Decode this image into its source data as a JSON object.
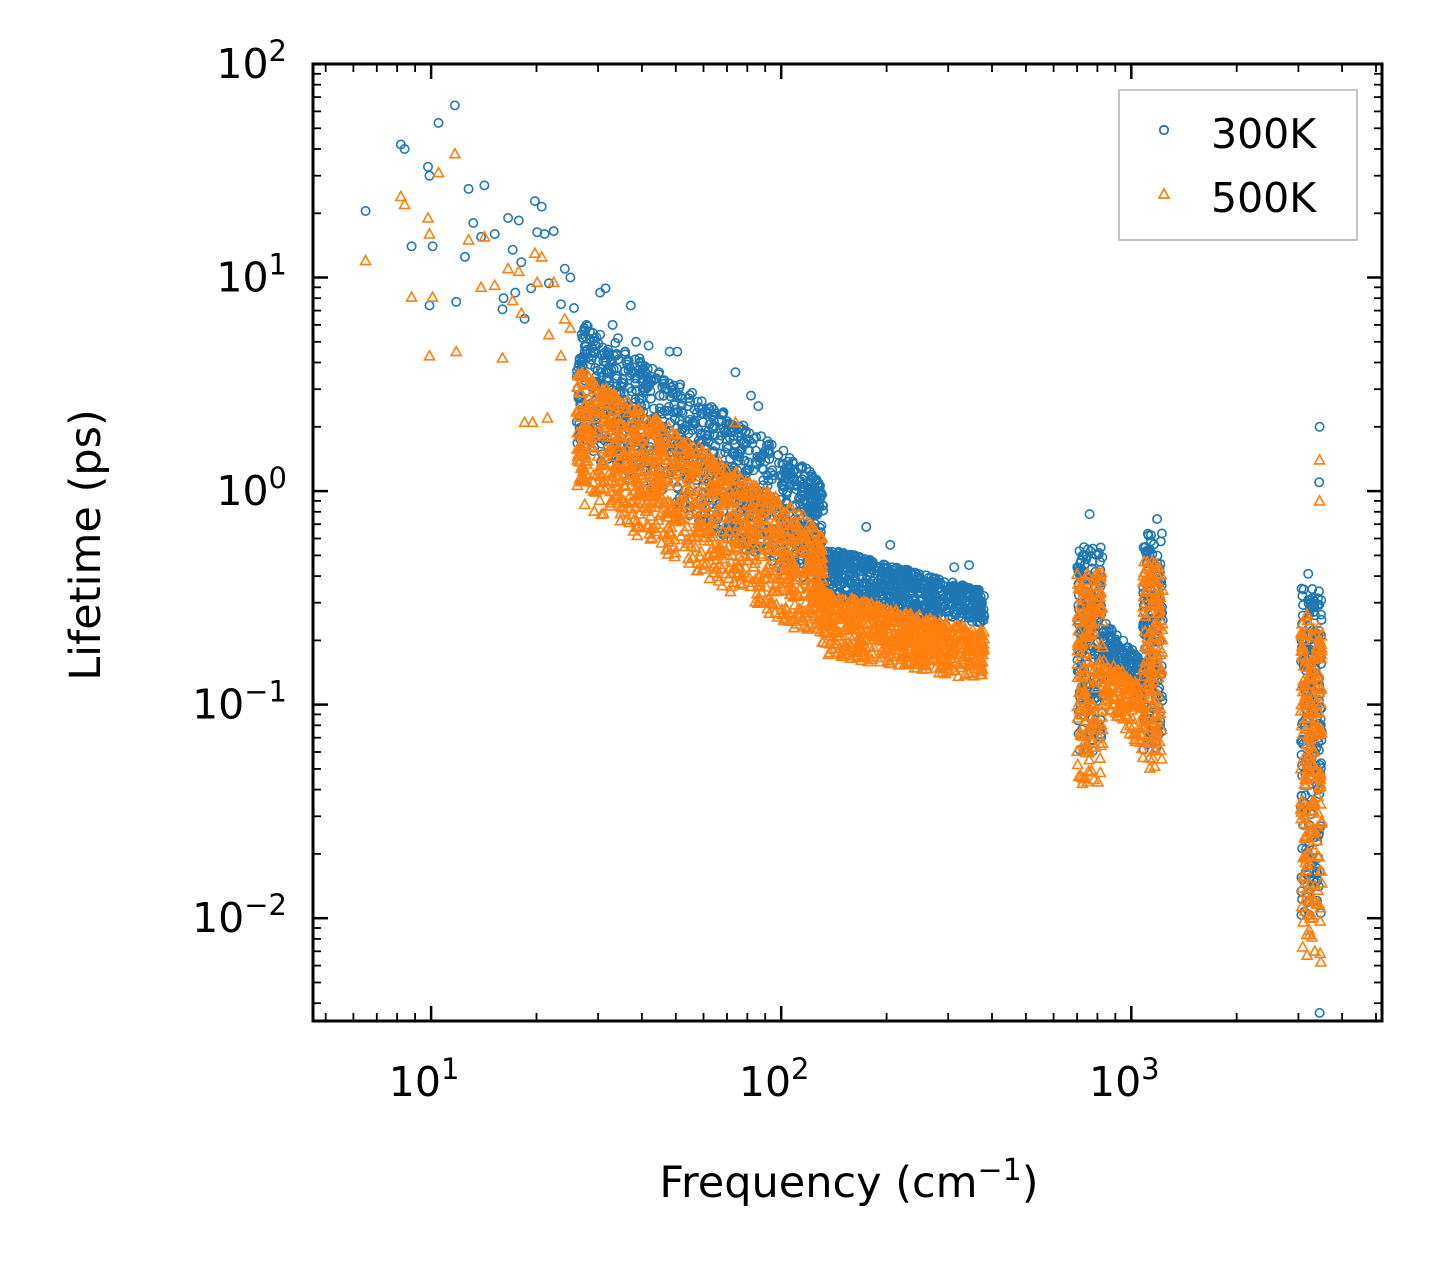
{
  "chart_data": {
    "type": "scatter",
    "title": "",
    "xlabel": "Frequency (cm",
    "xlabel_sup": "−1",
    "xlabel_end": ")",
    "ylabel": "Lifetime (ps)",
    "xscale": "log",
    "yscale": "log",
    "xlim": [
      4.6,
      5200
    ],
    "ylim": [
      0.0033,
      100
    ],
    "x_ticks": [
      {
        "value": 10,
        "base": "10",
        "exp": "1"
      },
      {
        "value": 100,
        "base": "10",
        "exp": "2"
      },
      {
        "value": 1000,
        "base": "10",
        "exp": "3"
      }
    ],
    "y_ticks": [
      {
        "value": 0.01,
        "base": "10",
        "exp": "−2"
      },
      {
        "value": 0.1,
        "base": "10",
        "exp": "−1"
      },
      {
        "value": 1,
        "base": "10",
        "exp": "0"
      },
      {
        "value": 10,
        "base": "10",
        "exp": "1"
      },
      {
        "value": 100,
        "base": "10",
        "exp": "2"
      }
    ],
    "legend_position": "top-right",
    "series": [
      {
        "name": "300K",
        "marker": "circle",
        "color": "#1f77b4",
        "points": [
          [
            6.5,
            20.5
          ],
          [
            8.2,
            42
          ],
          [
            8.4,
            40
          ],
          [
            8.8,
            14
          ],
          [
            9.8,
            33
          ],
          [
            9.9,
            30
          ],
          [
            9.9,
            7.4
          ],
          [
            10.1,
            14
          ],
          [
            10.5,
            53
          ],
          [
            11.7,
            64
          ],
          [
            11.8,
            7.7
          ],
          [
            12.5,
            12.5
          ],
          [
            12.8,
            26
          ],
          [
            13.2,
            18
          ],
          [
            13.9,
            15.5
          ],
          [
            14.2,
            27
          ],
          [
            15.2,
            16
          ],
          [
            16,
            7.1
          ],
          [
            16.1,
            8
          ],
          [
            16.6,
            19
          ],
          [
            17.1,
            13.5
          ],
          [
            17.4,
            8.5
          ],
          [
            17.8,
            18.5
          ],
          [
            18.1,
            11.8
          ],
          [
            18.5,
            6.4
          ],
          [
            19.3,
            8.9
          ],
          [
            19.8,
            22.8
          ],
          [
            20.1,
            16.3
          ],
          [
            20.7,
            21.5
          ],
          [
            21.1,
            16
          ],
          [
            21.7,
            9.4
          ],
          [
            22.4,
            16.5
          ],
          [
            23.5,
            7.5
          ],
          [
            24.1,
            11
          ],
          [
            25,
            10
          ],
          [
            25.6,
            7.2
          ],
          [
            27.4,
            5.8
          ],
          [
            29,
            5.5
          ],
          [
            30.4,
            8.5
          ],
          [
            31.5,
            8.9
          ],
          [
            33,
            6
          ],
          [
            34.2,
            5.2
          ],
          [
            37.2,
            7.4
          ],
          [
            38.5,
            5
          ],
          [
            41.8,
            4.8
          ],
          [
            48,
            4.5
          ],
          [
            50.5,
            4.5
          ],
          [
            74,
            3.6
          ],
          [
            82,
            2.8
          ],
          [
            86,
            2.5
          ],
          [
            175,
            0.68
          ],
          [
            205,
            0.56
          ],
          [
            312,
            0.44
          ],
          [
            344,
            0.45
          ],
          [
            760,
            0.78
          ],
          [
            1185,
            0.74
          ],
          [
            3450,
            2.0
          ],
          [
            3440,
            1.1
          ],
          [
            3200,
            0.41
          ],
          [
            3450,
            0.0036
          ]
        ],
        "bands": [
          {
            "x": [
              26,
              120
            ],
            "y_top": [
              6.5,
              1.3
            ],
            "y_bot": [
              1.6,
              0.35
            ],
            "n": 1000
          },
          {
            "x": [
              120,
              132
            ],
            "y_top": [
              1.3,
              1.0
            ],
            "y_bot": [
              0.45,
              0.3
            ],
            "n": 120
          },
          {
            "x": [
              132,
              380
            ],
            "y_top": [
              0.55,
              0.34
            ],
            "y_bot": [
              0.3,
              0.24
            ],
            "n": 650
          },
          {
            "x": [
              700,
              830
            ],
            "y_top": [
              0.55,
              0.55
            ],
            "y_bot": [
              0.06,
              0.06
            ],
            "n": 180
          },
          {
            "x": [
              830,
              1080
            ],
            "y_top": [
              0.25,
              0.16
            ],
            "y_bot": [
              0.16,
              0.1
            ],
            "n": 140
          },
          {
            "x": [
              1080,
              1230
            ],
            "y_top": [
              0.65,
              0.65
            ],
            "y_bot": [
              0.06,
              0.06
            ],
            "n": 150
          },
          {
            "x": [
              3050,
              3500
            ],
            "y_top": [
              0.35,
              0.35
            ],
            "y_bot": [
              0.01,
              0.01
            ],
            "n": 220
          }
        ]
      },
      {
        "name": "500K",
        "marker": "triangle",
        "color": "#ff7f0e",
        "points": [
          [
            6.5,
            12
          ],
          [
            8.2,
            24
          ],
          [
            8.4,
            22
          ],
          [
            8.8,
            8.1
          ],
          [
            9.8,
            19
          ],
          [
            9.9,
            16
          ],
          [
            9.9,
            4.3
          ],
          [
            10.1,
            8.1
          ],
          [
            10.5,
            31
          ],
          [
            11.7,
            38
          ],
          [
            11.8,
            4.5
          ],
          [
            12.8,
            15
          ],
          [
            13.9,
            9
          ],
          [
            14.2,
            15.5
          ],
          [
            15.2,
            9.2
          ],
          [
            16,
            4.2
          ],
          [
            16.6,
            11
          ],
          [
            17.1,
            7.8
          ],
          [
            17.8,
            10.7
          ],
          [
            18.1,
            6.8
          ],
          [
            18.5,
            2.1
          ],
          [
            19.8,
            13
          ],
          [
            20.1,
            9.5
          ],
          [
            20.7,
            12.5
          ],
          [
            21.7,
            5.4
          ],
          [
            22.4,
            9.5
          ],
          [
            23.5,
            4.3
          ],
          [
            24.1,
            6.4
          ],
          [
            25,
            5.8
          ],
          [
            19.5,
            2.1
          ],
          [
            21.5,
            2.2
          ],
          [
            29,
            1.1
          ],
          [
            74,
            2.1
          ],
          [
            3450,
            1.4
          ],
          [
            3450,
            0.9
          ]
        ],
        "bands": [
          {
            "x": [
              26,
              120
            ],
            "y_top": [
              3.8,
              0.75
            ],
            "y_bot": [
              0.9,
              0.2
            ],
            "n": 1000
          },
          {
            "x": [
              120,
              132
            ],
            "y_top": [
              0.75,
              0.6
            ],
            "y_bot": [
              0.27,
              0.18
            ],
            "n": 120
          },
          {
            "x": [
              132,
              380
            ],
            "y_top": [
              0.34,
              0.22
            ],
            "y_bot": [
              0.17,
              0.13
            ],
            "n": 650
          },
          {
            "x": [
              700,
              830
            ],
            "y_top": [
              0.42,
              0.42
            ],
            "y_bot": [
              0.04,
              0.04
            ],
            "n": 180
          },
          {
            "x": [
              830,
              1080
            ],
            "y_top": [
              0.17,
              0.12
            ],
            "y_bot": [
              0.1,
              0.06
            ],
            "n": 140
          },
          {
            "x": [
              1080,
              1230
            ],
            "y_top": [
              0.48,
              0.48
            ],
            "y_bot": [
              0.05,
              0.05
            ],
            "n": 150
          },
          {
            "x": [
              3050,
              3500
            ],
            "y_top": [
              0.28,
              0.28
            ],
            "y_bot": [
              0.006,
              0.006
            ],
            "n": 220
          }
        ]
      }
    ]
  }
}
